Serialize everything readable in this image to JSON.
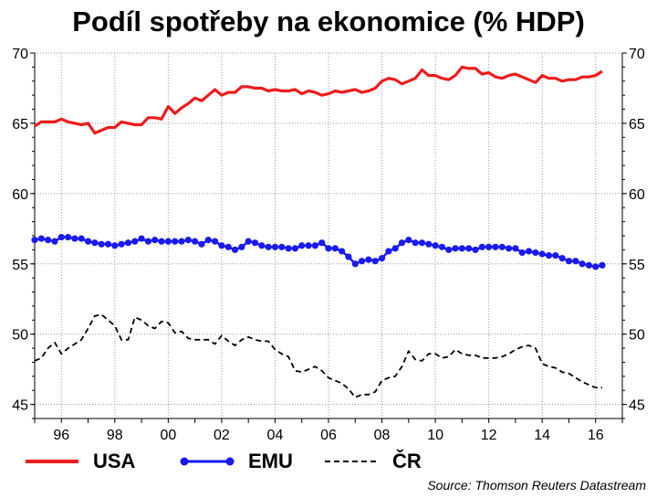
{
  "chart_data": {
    "type": "line",
    "title": "Podíl spotřeby na ekonomice (% HDP)",
    "xlabel": "",
    "ylabel": "",
    "source": "Source: Thomson Reuters Datastream",
    "xlim": [
      1995.0,
      2017.0
    ],
    "ylim": [
      44,
      70
    ],
    "yticks": [
      45,
      50,
      55,
      60,
      65,
      70
    ],
    "xtick_labels": [
      {
        "x": 1996.0,
        "label": "96"
      },
      {
        "x": 1998.0,
        "label": "98"
      },
      {
        "x": 2000.0,
        "label": "00"
      },
      {
        "x": 2002.0,
        "label": "02"
      },
      {
        "x": 2004.0,
        "label": "04"
      },
      {
        "x": 2006.0,
        "label": "06"
      },
      {
        "x": 2008.0,
        "label": "08"
      },
      {
        "x": 2010.0,
        "label": "10"
      },
      {
        "x": 2012.0,
        "label": "12"
      },
      {
        "x": 2014.0,
        "label": "14"
      },
      {
        "x": 2016.0,
        "label": "16"
      }
    ],
    "grid": true,
    "legend_position": "bottom",
    "series": [
      {
        "name": "USA",
        "color": "#ee1c1c",
        "style": "solid",
        "x": [
          1995.0,
          1995.25,
          1995.5,
          1995.75,
          1996.0,
          1996.25,
          1996.5,
          1996.75,
          1997.0,
          1997.25,
          1997.5,
          1997.75,
          1998.0,
          1998.25,
          1998.5,
          1998.75,
          1999.0,
          1999.25,
          1999.5,
          1999.75,
          2000.0,
          2000.25,
          2000.5,
          2000.75,
          2001.0,
          2001.25,
          2001.5,
          2001.75,
          2002.0,
          2002.25,
          2002.5,
          2002.75,
          2003.0,
          2003.25,
          2003.5,
          2003.75,
          2004.0,
          2004.25,
          2004.5,
          2004.75,
          2005.0,
          2005.25,
          2005.5,
          2005.75,
          2006.0,
          2006.25,
          2006.5,
          2006.75,
          2007.0,
          2007.25,
          2007.5,
          2007.75,
          2008.0,
          2008.25,
          2008.5,
          2008.75,
          2009.0,
          2009.25,
          2009.5,
          2009.75,
          2010.0,
          2010.25,
          2010.5,
          2010.75,
          2011.0,
          2011.25,
          2011.5,
          2011.75,
          2012.0,
          2012.25,
          2012.5,
          2012.75,
          2013.0,
          2013.25,
          2013.5,
          2013.75,
          2014.0,
          2014.25,
          2014.5,
          2014.75,
          2015.0,
          2015.25,
          2015.5,
          2015.75,
          2016.0,
          2016.25
        ],
        "values": [
          64.8,
          65.1,
          65.1,
          65.1,
          65.3,
          65.1,
          65.0,
          64.9,
          65.0,
          64.3,
          64.5,
          64.7,
          64.7,
          65.1,
          65.0,
          64.9,
          64.9,
          65.4,
          65.4,
          65.3,
          66.2,
          65.7,
          66.1,
          66.4,
          66.8,
          66.6,
          67.0,
          67.4,
          67.0,
          67.2,
          67.2,
          67.6,
          67.6,
          67.5,
          67.5,
          67.3,
          67.4,
          67.3,
          67.3,
          67.4,
          67.1,
          67.3,
          67.2,
          67.0,
          67.1,
          67.3,
          67.2,
          67.3,
          67.4,
          67.2,
          67.3,
          67.5,
          68.0,
          68.2,
          68.1,
          67.8,
          68.0,
          68.2,
          68.8,
          68.4,
          68.4,
          68.2,
          68.1,
          68.4,
          69.0,
          68.9,
          68.9,
          68.5,
          68.6,
          68.3,
          68.2,
          68.4,
          68.5,
          68.3,
          68.1,
          67.9,
          68.4,
          68.2,
          68.2,
          68.0,
          68.1,
          68.1,
          68.3,
          68.3,
          68.4,
          68.7
        ]
      },
      {
        "name": "EMU",
        "color": "#1a1aee",
        "style": "dots",
        "x": [
          1995.0,
          1995.25,
          1995.5,
          1995.75,
          1996.0,
          1996.25,
          1996.5,
          1996.75,
          1997.0,
          1997.25,
          1997.5,
          1997.75,
          1998.0,
          1998.25,
          1998.5,
          1998.75,
          1999.0,
          1999.25,
          1999.5,
          1999.75,
          2000.0,
          2000.25,
          2000.5,
          2000.75,
          2001.0,
          2001.25,
          2001.5,
          2001.75,
          2002.0,
          2002.25,
          2002.5,
          2002.75,
          2003.0,
          2003.25,
          2003.5,
          2003.75,
          2004.0,
          2004.25,
          2004.5,
          2004.75,
          2005.0,
          2005.25,
          2005.5,
          2005.75,
          2006.0,
          2006.25,
          2006.5,
          2006.75,
          2007.0,
          2007.25,
          2007.5,
          2007.75,
          2008.0,
          2008.25,
          2008.5,
          2008.75,
          2009.0,
          2009.25,
          2009.5,
          2009.75,
          2010.0,
          2010.25,
          2010.5,
          2010.75,
          2011.0,
          2011.25,
          2011.5,
          2011.75,
          2012.0,
          2012.25,
          2012.5,
          2012.75,
          2013.0,
          2013.25,
          2013.5,
          2013.75,
          2014.0,
          2014.25,
          2014.5,
          2014.75,
          2015.0,
          2015.25,
          2015.5,
          2015.75,
          2016.0,
          2016.25
        ],
        "values": [
          56.7,
          56.8,
          56.7,
          56.6,
          56.9,
          56.9,
          56.8,
          56.8,
          56.6,
          56.5,
          56.4,
          56.4,
          56.3,
          56.4,
          56.5,
          56.6,
          56.8,
          56.6,
          56.7,
          56.6,
          56.6,
          56.6,
          56.6,
          56.7,
          56.6,
          56.4,
          56.7,
          56.6,
          56.3,
          56.2,
          56.0,
          56.2,
          56.6,
          56.5,
          56.3,
          56.2,
          56.2,
          56.2,
          56.1,
          56.1,
          56.3,
          56.3,
          56.3,
          56.5,
          56.1,
          56.1,
          55.9,
          55.5,
          55.0,
          55.2,
          55.3,
          55.2,
          55.4,
          55.9,
          56.1,
          56.5,
          56.7,
          56.5,
          56.5,
          56.4,
          56.3,
          56.2,
          56.0,
          56.1,
          56.1,
          56.1,
          56.0,
          56.2,
          56.2,
          56.2,
          56.2,
          56.1,
          56.1,
          55.8,
          55.9,
          55.8,
          55.7,
          55.6,
          55.6,
          55.4,
          55.2,
          55.2,
          55.0,
          54.9,
          54.8,
          54.9
        ]
      },
      {
        "name": "ČR",
        "color": "#000000",
        "style": "dashed",
        "x": [
          1995.0,
          1995.25,
          1995.5,
          1995.75,
          1996.0,
          1996.25,
          1996.5,
          1996.75,
          1997.0,
          1997.25,
          1997.5,
          1997.75,
          1998.0,
          1998.25,
          1998.5,
          1998.75,
          1999.0,
          1999.25,
          1999.5,
          1999.75,
          2000.0,
          2000.25,
          2000.5,
          2000.75,
          2001.0,
          2001.25,
          2001.5,
          2001.75,
          2002.0,
          2002.25,
          2002.5,
          2002.75,
          2003.0,
          2003.25,
          2003.5,
          2003.75,
          2004.0,
          2004.25,
          2004.5,
          2004.75,
          2005.0,
          2005.25,
          2005.5,
          2005.75,
          2006.0,
          2006.25,
          2006.5,
          2006.75,
          2007.0,
          2007.25,
          2007.5,
          2007.75,
          2008.0,
          2008.25,
          2008.5,
          2008.75,
          2009.0,
          2009.25,
          2009.5,
          2009.75,
          2010.0,
          2010.25,
          2010.5,
          2010.75,
          2011.0,
          2011.25,
          2011.5,
          2011.75,
          2012.0,
          2012.25,
          2012.5,
          2012.75,
          2013.0,
          2013.25,
          2013.5,
          2013.75,
          2014.0,
          2014.25,
          2014.5,
          2014.75,
          2015.0,
          2015.25,
          2015.5,
          2015.75,
          2016.0,
          2016.25
        ],
        "values": [
          48.1,
          48.3,
          49.0,
          49.4,
          48.6,
          49.0,
          49.3,
          49.6,
          50.4,
          51.3,
          51.4,
          51.0,
          50.6,
          49.6,
          49.6,
          51.2,
          51.0,
          50.6,
          50.4,
          50.9,
          50.8,
          50.1,
          50.2,
          49.7,
          49.6,
          49.6,
          49.6,
          49.3,
          49.9,
          49.5,
          49.2,
          49.6,
          49.8,
          49.6,
          49.5,
          49.5,
          48.9,
          48.6,
          48.4,
          47.4,
          47.3,
          47.5,
          47.7,
          47.4,
          46.9,
          46.7,
          46.5,
          46.1,
          45.5,
          45.7,
          45.7,
          45.9,
          46.7,
          46.9,
          47.0,
          47.7,
          48.8,
          48.2,
          48.1,
          48.6,
          48.6,
          48.3,
          48.4,
          48.9,
          48.6,
          48.5,
          48.5,
          48.3,
          48.3,
          48.3,
          48.4,
          48.6,
          48.9,
          49.1,
          49.2,
          49.0,
          47.9,
          47.7,
          47.6,
          47.3,
          47.2,
          46.9,
          46.6,
          46.4,
          46.2,
          46.2
        ]
      }
    ]
  }
}
